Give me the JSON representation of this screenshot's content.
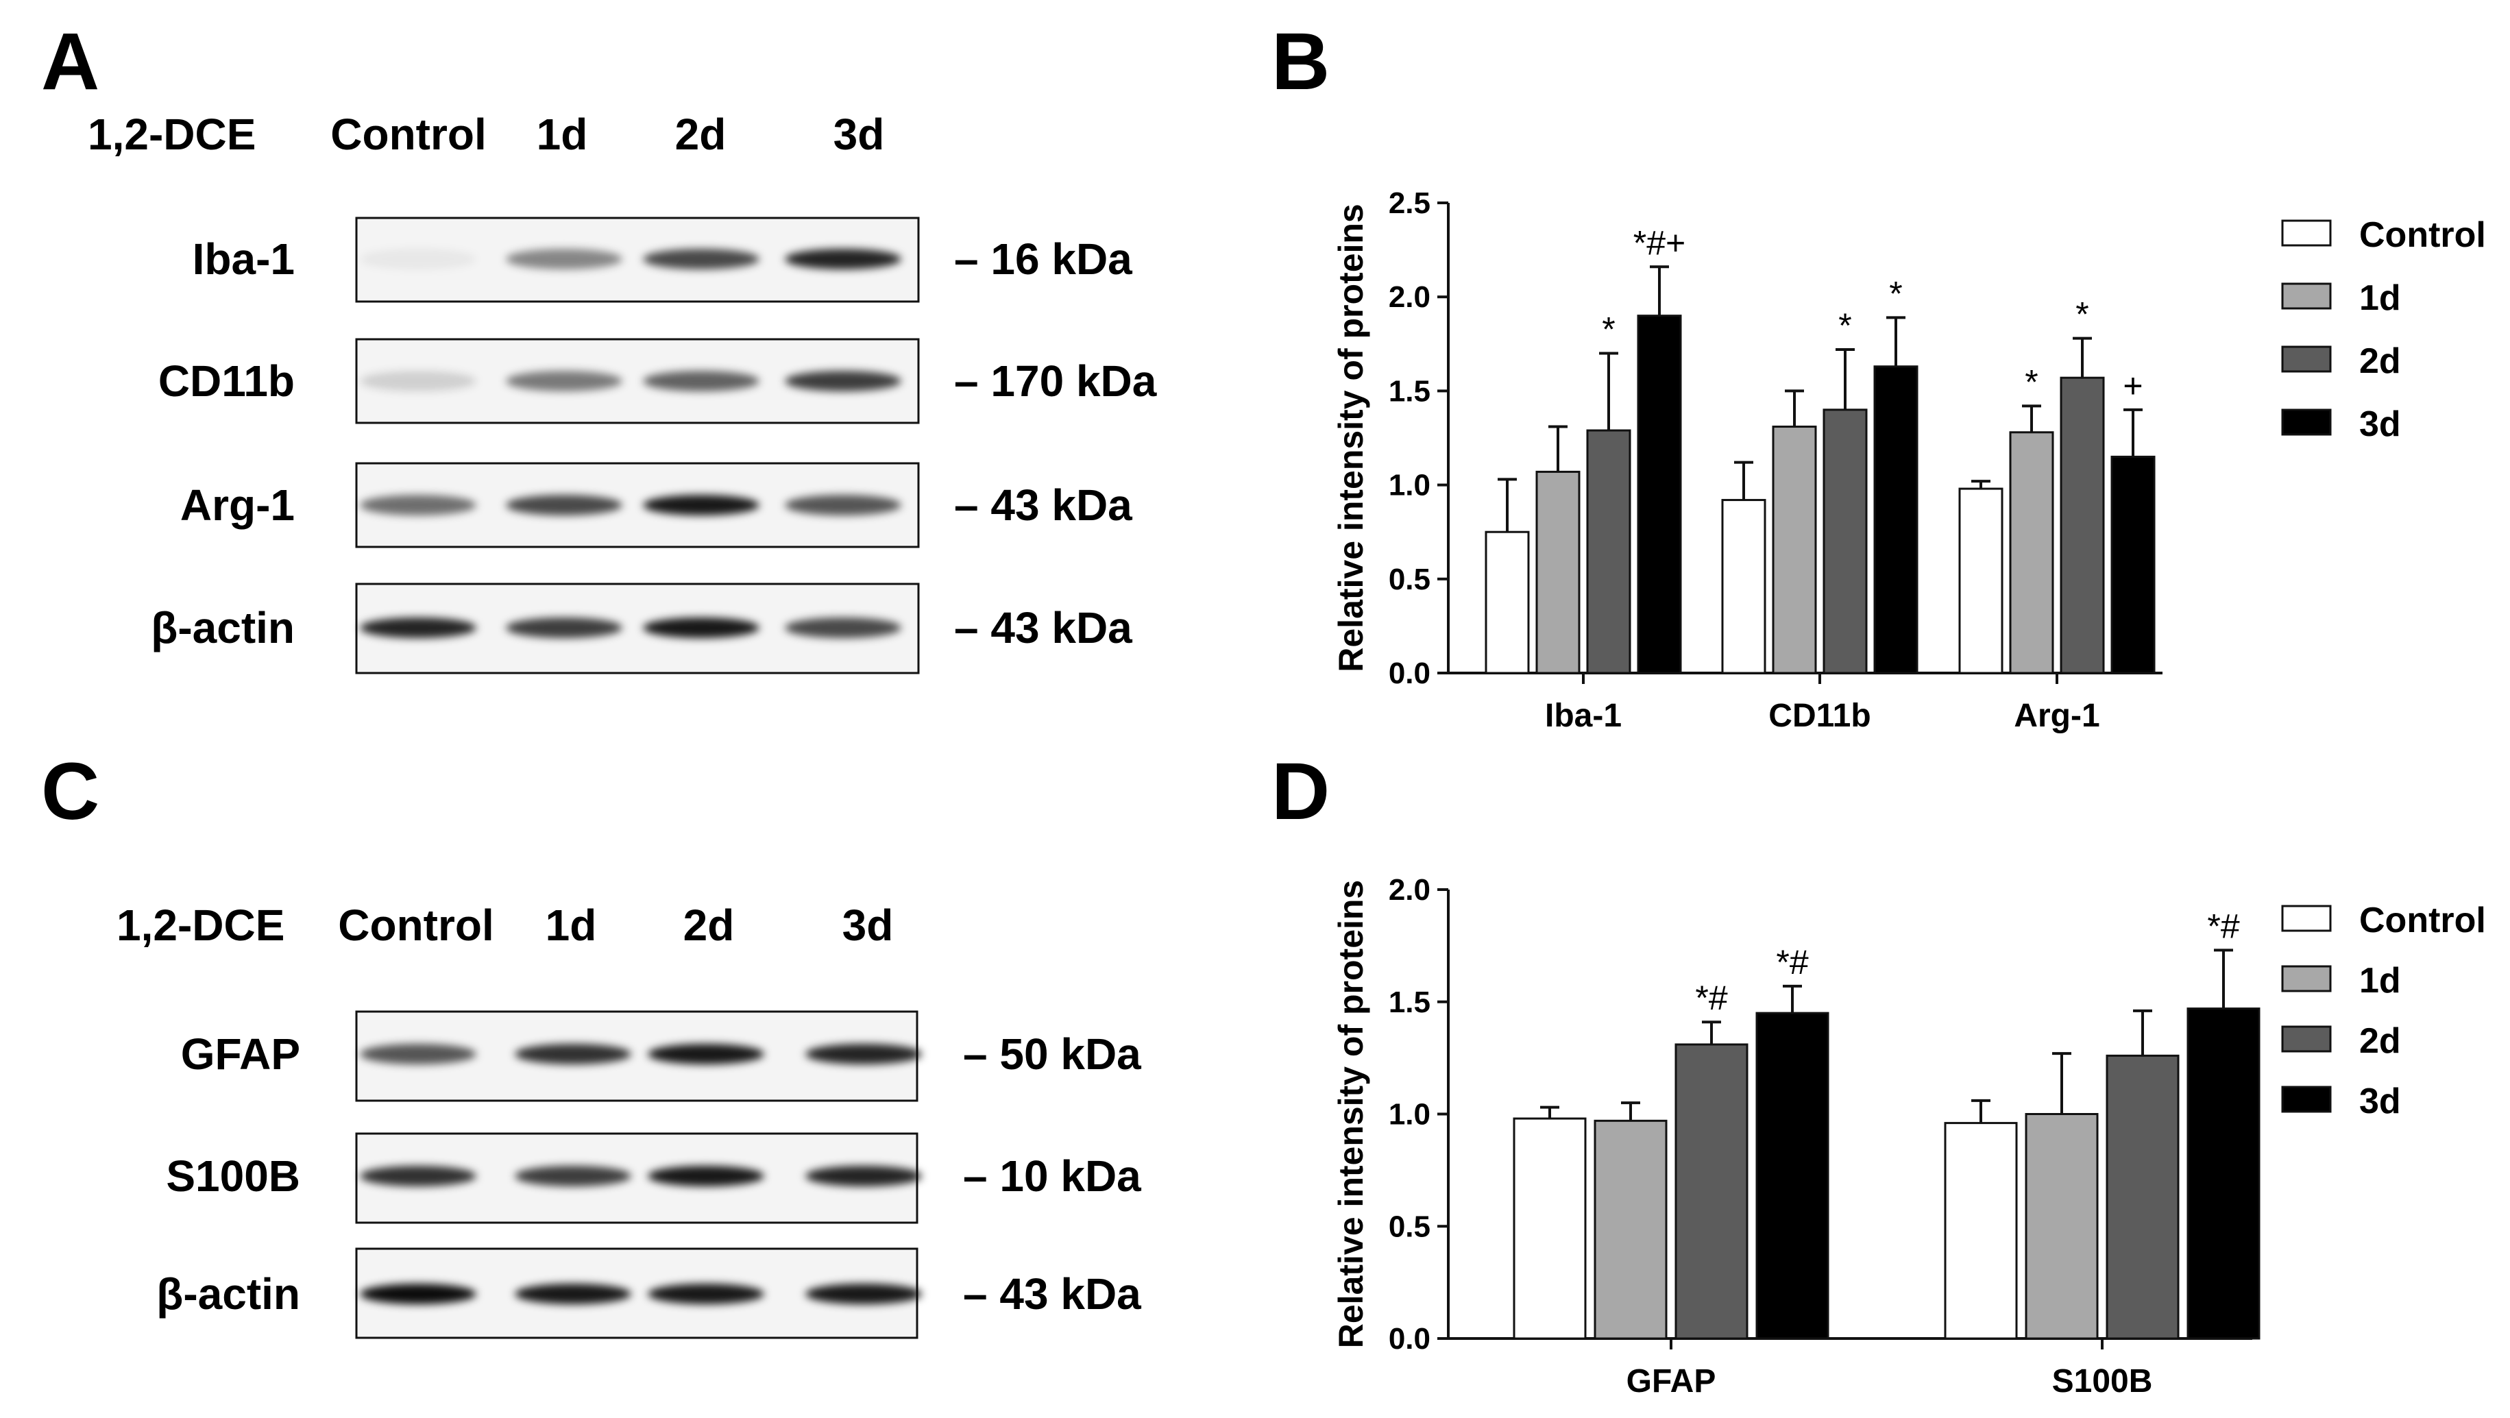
{
  "panels": {
    "a": "A",
    "b": "B",
    "c": "C",
    "d": "D"
  },
  "blot_a": {
    "treatment_label": "1,2-DCE",
    "lanes": [
      "Control",
      "1d",
      "2d",
      "3d"
    ],
    "rows": [
      {
        "protein": "Iba-1",
        "mw": "– 16 kDa",
        "intensity": [
          0.05,
          0.45,
          0.7,
          0.85
        ]
      },
      {
        "protein": "CD11b",
        "mw": "– 170 kDa",
        "intensity": [
          0.15,
          0.5,
          0.6,
          0.75
        ]
      },
      {
        "protein": "Arg-1",
        "mw": "– 43 kDa",
        "intensity": [
          0.55,
          0.7,
          0.9,
          0.65
        ]
      },
      {
        "protein": "β-actin",
        "mw": "– 43 kDa",
        "intensity": [
          0.85,
          0.75,
          0.9,
          0.7
        ]
      }
    ]
  },
  "blot_c": {
    "treatment_label": "1,2-DCE",
    "lanes": [
      "Control",
      "1d",
      "2d",
      "3d"
    ],
    "rows": [
      {
        "protein": "GFAP",
        "mw": "– 50 kDa",
        "intensity": [
          0.65,
          0.8,
          0.9,
          0.85
        ]
      },
      {
        "protein": "S100B",
        "mw": "– 10 kDa",
        "intensity": [
          0.8,
          0.75,
          0.9,
          0.85
        ]
      },
      {
        "protein": "β-actin",
        "mw": "– 43 kDa",
        "intensity": [
          0.95,
          0.9,
          0.9,
          0.9
        ]
      }
    ]
  },
  "chart_data": [
    {
      "type": "bar",
      "panel": "B",
      "ylabel": "Relative intensity of proteins",
      "ylim": [
        0,
        2.5
      ],
      "yticks": [
        "0.0",
        "0.5",
        "1.0",
        "1.5",
        "2.0",
        "2.5"
      ],
      "categories": [
        "Iba-1",
        "CD11b",
        "Arg-1"
      ],
      "series": [
        {
          "name": "Control",
          "color": "#ffffff",
          "values": [
            0.75,
            0.92,
            0.98
          ],
          "errors": [
            0.28,
            0.2,
            0.04
          ],
          "marks": [
            "",
            "",
            ""
          ]
        },
        {
          "name": "1d",
          "color": "#a8a8a8",
          "values": [
            1.07,
            1.31,
            1.28
          ],
          "errors": [
            0.24,
            0.19,
            0.14
          ],
          "marks": [
            "",
            "",
            "*"
          ]
        },
        {
          "name": "2d",
          "color": "#5c5c5c",
          "values": [
            1.29,
            1.4,
            1.57
          ],
          "errors": [
            0.41,
            0.32,
            0.21
          ],
          "marks": [
            "*",
            "*",
            "*"
          ]
        },
        {
          "name": "3d",
          "color": "#000000",
          "values": [
            1.9,
            1.63,
            1.15
          ],
          "errors": [
            0.26,
            0.26,
            0.25
          ],
          "marks": [
            "*#+",
            "*",
            "+"
          ]
        }
      ],
      "legend": "right",
      "grid": false
    },
    {
      "type": "bar",
      "panel": "D",
      "ylabel": "Relative intensity of proteins",
      "ylim": [
        0,
        2.0
      ],
      "yticks": [
        "0.0",
        "0.5",
        "1.0",
        "1.5",
        "2.0"
      ],
      "categories": [
        "GFAP",
        "S100B"
      ],
      "series": [
        {
          "name": "Control",
          "color": "#ffffff",
          "values": [
            0.98,
            0.96
          ],
          "errors": [
            0.05,
            0.1
          ],
          "marks": [
            "",
            ""
          ]
        },
        {
          "name": "1d",
          "color": "#a8a8a8",
          "values": [
            0.97,
            1.0
          ],
          "errors": [
            0.08,
            0.27
          ],
          "marks": [
            "",
            ""
          ]
        },
        {
          "name": "2d",
          "color": "#5c5c5c",
          "values": [
            1.31,
            1.26
          ],
          "errors": [
            0.1,
            0.2
          ],
          "marks": [
            "*#",
            ""
          ]
        },
        {
          "name": "3d",
          "color": "#000000",
          "values": [
            1.45,
            1.47
          ],
          "errors": [
            0.12,
            0.26
          ],
          "marks": [
            "*#",
            "*#"
          ]
        }
      ],
      "legend": "right",
      "grid": false
    }
  ]
}
